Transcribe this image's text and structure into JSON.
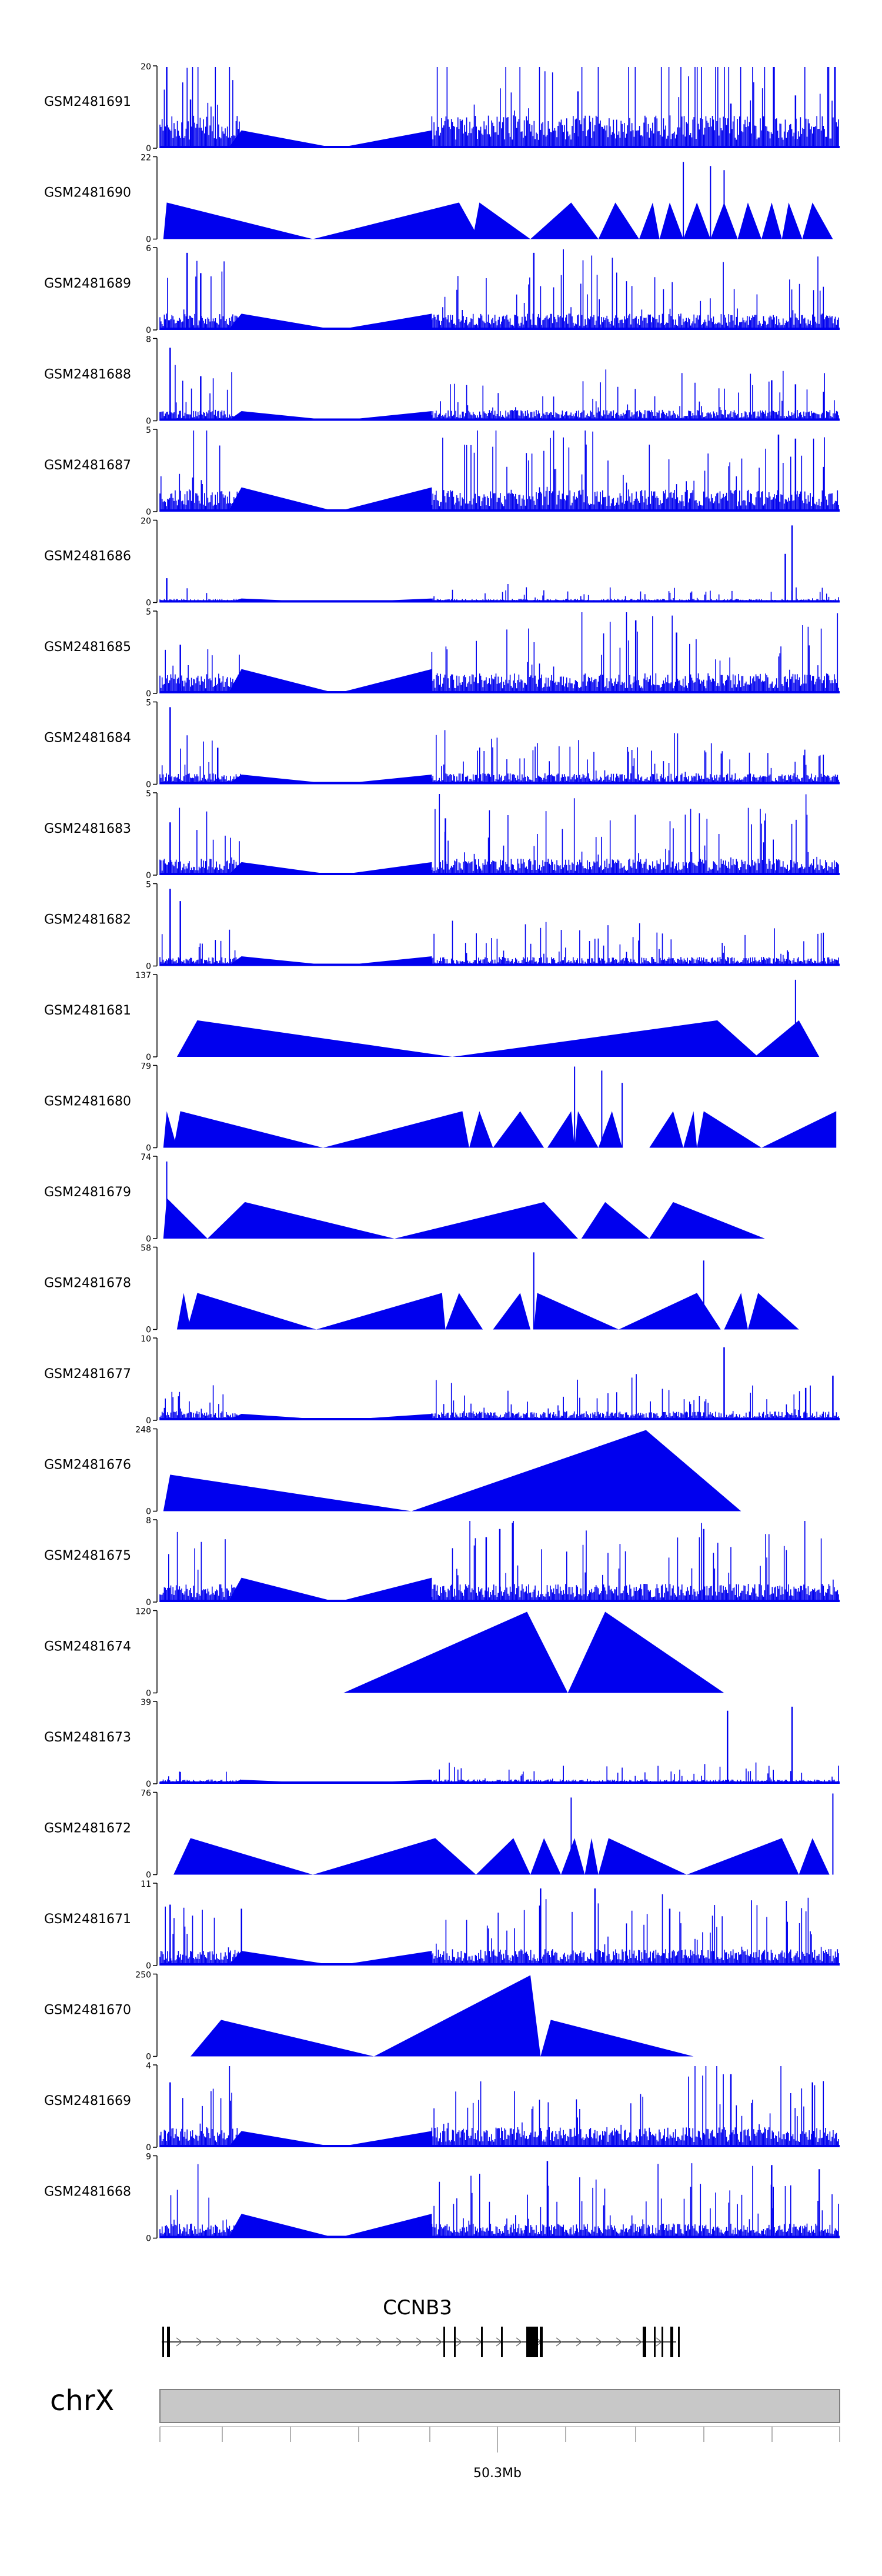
{
  "colors": {
    "signal": "#0000EE",
    "axis": "#000000",
    "chrom_bar": "#C8C8C8",
    "chrom_border": "#808080"
  },
  "chart_data": {
    "type": "area",
    "chromosome": "chrX",
    "gene_label": "CCNB3",
    "position_label": "50.3Mb",
    "tracks": [
      {
        "name": "GSM2481691",
        "ymax": "20",
        "ymin": "0",
        "style": "dense",
        "base": 0.9,
        "gap_peak": 0.22,
        "peaks": [
          [
            0.01,
            1.0
          ],
          [
            0.045,
            0.6
          ],
          [
            0.615,
            0.7
          ],
          [
            0.84,
            0.55
          ],
          [
            0.935,
            0.65
          ]
        ]
      },
      {
        "name": "GSM2481690",
        "ymax": "22",
        "ymin": "0",
        "style": "tri",
        "tris": [
          [
            0.005,
            0.01,
            0.225,
            0.45
          ],
          [
            0.225,
            0.44,
            0.47,
            0.45
          ],
          [
            0.46,
            0.47,
            0.545,
            0.45
          ],
          [
            0.545,
            0.605,
            0.645,
            0.45
          ],
          [
            0.645,
            0.67,
            0.705,
            0.45
          ],
          [
            0.705,
            0.725,
            0.735,
            0.45
          ],
          [
            0.735,
            0.75,
            0.77,
            0.45
          ],
          [
            0.77,
            0.79,
            0.81,
            0.45
          ],
          [
            0.81,
            0.83,
            0.85,
            0.45
          ],
          [
            0.85,
            0.865,
            0.885,
            0.45
          ],
          [
            0.885,
            0.9,
            0.915,
            0.45
          ],
          [
            0.915,
            0.925,
            0.945,
            0.45
          ],
          [
            0.945,
            0.96,
            0.99,
            0.45
          ]
        ],
        "spikes": [
          [
            0.77,
            0.95
          ],
          [
            0.81,
            0.9
          ],
          [
            0.83,
            0.85
          ]
        ]
      },
      {
        "name": "GSM2481689",
        "ymax": "6",
        "ymin": "0",
        "style": "dense",
        "base": 0.45,
        "gap_peak": 0.2,
        "peaks": [
          [
            0.04,
            0.95
          ],
          [
            0.06,
            0.7
          ],
          [
            0.55,
            0.95
          ]
        ]
      },
      {
        "name": "GSM2481688",
        "ymax": "8",
        "ymin": "0",
        "style": "dense",
        "base": 0.3,
        "gap_peak": 0.12,
        "peaks": [
          [
            0.015,
            0.9
          ],
          [
            0.06,
            0.55
          ],
          [
            0.9,
            0.5
          ],
          [
            0.935,
            0.45
          ]
        ]
      },
      {
        "name": "GSM2481687",
        "ymax": "5",
        "ymin": "0",
        "style": "dense",
        "base": 0.6,
        "gap_peak": 0.3,
        "peaks": [
          [
            0.91,
            0.95
          ],
          [
            0.935,
            0.9
          ]
        ]
      },
      {
        "name": "GSM2481686",
        "ymax": "20",
        "ymin": "0",
        "style": "dense",
        "base": 0.1,
        "gap_peak": 0.05,
        "peaks": [
          [
            0.01,
            0.3
          ],
          [
            0.93,
            0.95
          ],
          [
            0.92,
            0.6
          ]
        ]
      },
      {
        "name": "GSM2481685",
        "ymax": "5",
        "ymin": "0",
        "style": "dense",
        "base": 0.55,
        "gap_peak": 0.3,
        "peaks": [
          [
            0.03,
            0.6
          ],
          [
            0.7,
            0.9
          ],
          [
            0.76,
            0.75
          ]
        ]
      },
      {
        "name": "GSM2481684",
        "ymax": "5",
        "ymin": "0",
        "style": "dense",
        "base": 0.3,
        "gap_peak": 0.12,
        "peaks": [
          [
            0.015,
            0.95
          ],
          [
            0.085,
            0.45
          ]
        ]
      },
      {
        "name": "GSM2481683",
        "ymax": "5",
        "ymin": "0",
        "style": "dense",
        "base": 0.45,
        "gap_peak": 0.16,
        "peaks": [
          [
            0.015,
            0.65
          ],
          [
            0.42,
            0.7
          ]
        ]
      },
      {
        "name": "GSM2481682",
        "ymax": "5",
        "ymin": "0",
        "style": "dense",
        "base": 0.25,
        "gap_peak": 0.12,
        "peaks": [
          [
            0.015,
            0.95
          ],
          [
            0.03,
            0.8
          ]
        ]
      },
      {
        "name": "GSM2481681",
        "ymax": "137",
        "ymin": "0",
        "style": "tri",
        "tris": [
          [
            0.025,
            0.055,
            0.43,
            0.45
          ],
          [
            0.43,
            0.82,
            0.88,
            0.45
          ],
          [
            0.875,
            0.94,
            0.97,
            0.45
          ]
        ],
        "spikes": [
          [
            0.935,
            0.95
          ]
        ]
      },
      {
        "name": "GSM2481680",
        "ymax": "79",
        "ymin": "0",
        "style": "tri",
        "tris": [
          [
            0.005,
            0.01,
            0.025,
            0.45
          ],
          [
            0.02,
            0.03,
            0.24,
            0.45
          ],
          [
            0.24,
            0.445,
            0.455,
            0.45
          ],
          [
            0.455,
            0.47,
            0.49,
            0.45
          ],
          [
            0.49,
            0.53,
            0.565,
            0.45
          ],
          [
            0.57,
            0.605,
            0.61,
            0.45
          ],
          [
            0.61,
            0.615,
            0.645,
            0.45
          ],
          [
            0.645,
            0.665,
            0.68,
            0.45
          ],
          [
            0.72,
            0.755,
            0.77,
            0.45
          ],
          [
            0.77,
            0.785,
            0.79,
            0.45
          ],
          [
            0.79,
            0.8,
            0.885,
            0.45
          ],
          [
            0.885,
            0.995,
            0.995,
            0.45
          ]
        ],
        "spikes": [
          [
            0.61,
            1.0
          ],
          [
            0.65,
            0.95
          ],
          [
            0.68,
            0.8
          ]
        ]
      },
      {
        "name": "GSM2481679",
        "ymax": "74",
        "ymin": "0",
        "style": "tri",
        "tris": [
          [
            0.005,
            0.01,
            0.07,
            0.5
          ],
          [
            0.07,
            0.125,
            0.345,
            0.45
          ],
          [
            0.345,
            0.565,
            0.615,
            0.45
          ],
          [
            0.62,
            0.655,
            0.72,
            0.45
          ],
          [
            0.72,
            0.755,
            0.89,
            0.45
          ]
        ],
        "spikes": [
          [
            0.01,
            0.95
          ]
        ]
      },
      {
        "name": "GSM2481678",
        "ymax": "58",
        "ymin": "0",
        "style": "tri",
        "tris": [
          [
            0.025,
            0.035,
            0.045,
            0.45
          ],
          [
            0.04,
            0.055,
            0.23,
            0.45
          ],
          [
            0.23,
            0.415,
            0.42,
            0.45
          ],
          [
            0.42,
            0.44,
            0.475,
            0.45
          ],
          [
            0.49,
            0.53,
            0.545,
            0.45
          ],
          [
            0.55,
            0.555,
            0.675,
            0.45
          ],
          [
            0.675,
            0.79,
            0.825,
            0.45
          ],
          [
            0.83,
            0.855,
            0.865,
            0.45
          ],
          [
            0.865,
            0.88,
            0.94,
            0.45
          ]
        ],
        "spikes": [
          [
            0.55,
            0.95
          ],
          [
            0.8,
            0.85
          ]
        ]
      },
      {
        "name": "GSM2481677",
        "ymax": "10",
        "ymin": "0",
        "style": "dense",
        "base": 0.25,
        "gap_peak": 0.08,
        "peaks": [
          [
            0.83,
            0.9
          ],
          [
            0.95,
            0.4
          ],
          [
            0.99,
            0.55
          ]
        ]
      },
      {
        "name": "GSM2481676",
        "ymax": "248",
        "ymin": "0",
        "style": "tri",
        "tris": [
          [
            0.005,
            0.015,
            0.37,
            0.45
          ],
          [
            0.37,
            0.715,
            0.855,
            1.0
          ]
        ],
        "spikes": []
      },
      {
        "name": "GSM2481675",
        "ymax": "8",
        "ymin": "0",
        "style": "dense",
        "base": 0.5,
        "gap_peak": 0.3,
        "peaks": [
          [
            0.48,
            0.8
          ],
          [
            0.5,
            0.9
          ],
          [
            0.8,
            0.9
          ]
        ]
      },
      {
        "name": "GSM2481674",
        "ymax": "120",
        "ymin": "0",
        "style": "tri",
        "tris": [
          [
            0.27,
            0.54,
            0.6,
            1.0
          ],
          [
            0.6,
            0.655,
            0.83,
            1.0
          ]
        ],
        "spikes": []
      },
      {
        "name": "GSM2481673",
        "ymax": "39",
        "ymin": "0",
        "style": "dense",
        "base": 0.12,
        "gap_peak": 0.05,
        "peaks": [
          [
            0.835,
            0.9
          ],
          [
            0.93,
            0.95
          ]
        ]
      },
      {
        "name": "GSM2481672",
        "ymax": "76",
        "ymin": "0",
        "style": "tri",
        "tris": [
          [
            0.02,
            0.045,
            0.225,
            0.45
          ],
          [
            0.225,
            0.405,
            0.465,
            0.45
          ],
          [
            0.465,
            0.52,
            0.545,
            0.45
          ],
          [
            0.545,
            0.565,
            0.59,
            0.45
          ],
          [
            0.59,
            0.61,
            0.625,
            0.45
          ],
          [
            0.625,
            0.635,
            0.645,
            0.45
          ],
          [
            0.645,
            0.66,
            0.775,
            0.45
          ],
          [
            0.775,
            0.915,
            0.94,
            0.45
          ],
          [
            0.94,
            0.96,
            0.985,
            0.45
          ]
        ],
        "spikes": [
          [
            0.605,
            0.95
          ],
          [
            0.99,
            1.0
          ]
        ]
      },
      {
        "name": "GSM2481671",
        "ymax": "11",
        "ymin": "0",
        "style": "dense",
        "base": 0.45,
        "gap_peak": 0.18,
        "peaks": [
          [
            0.015,
            0.75
          ],
          [
            0.12,
            0.7
          ],
          [
            0.56,
            0.95
          ],
          [
            0.64,
            0.95
          ],
          [
            0.75,
            0.7
          ]
        ]
      },
      {
        "name": "GSM2481670",
        "ymax": "250",
        "ymin": "0",
        "style": "tri",
        "tris": [
          [
            0.045,
            0.09,
            0.315,
            0.45
          ],
          [
            0.315,
            0.545,
            0.56,
            1.0
          ],
          [
            0.56,
            0.575,
            0.785,
            0.45
          ]
        ],
        "spikes": []
      },
      {
        "name": "GSM2481669",
        "ymax": "4",
        "ymin": "0",
        "style": "dense",
        "base": 0.55,
        "gap_peak": 0.2,
        "peaks": [
          [
            0.015,
            0.8
          ],
          [
            0.84,
            0.9
          ],
          [
            0.96,
            0.8
          ]
        ]
      },
      {
        "name": "GSM2481668",
        "ymax": "9",
        "ymin": "0",
        "style": "dense",
        "base": 0.4,
        "gap_peak": 0.3,
        "peaks": [
          [
            0.57,
            0.95
          ],
          [
            0.9,
            0.9
          ],
          [
            0.97,
            0.85
          ]
        ]
      }
    ]
  }
}
